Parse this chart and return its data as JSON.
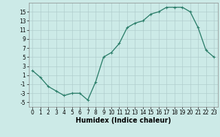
{
  "x": [
    0,
    1,
    2,
    3,
    4,
    5,
    6,
    7,
    8,
    9,
    10,
    11,
    12,
    13,
    14,
    15,
    16,
    17,
    18,
    19,
    20,
    21,
    22,
    23
  ],
  "y": [
    2,
    0.5,
    -1.5,
    -2.5,
    -3.5,
    -3,
    -3,
    -4.5,
    -0.5,
    5,
    6,
    8,
    11.5,
    12.5,
    13,
    14.5,
    15,
    16,
    16,
    16,
    15,
    11.5,
    6.5,
    5
  ],
  "line_color": "#2d7f6b",
  "marker": "+",
  "marker_size": 3,
  "linewidth": 1.0,
  "bg_color": "#cceae7",
  "grid_color": "#b0cccc",
  "xlabel": "Humidex (Indice chaleur)",
  "xlim": [
    -0.5,
    23.5
  ],
  "ylim": [
    -6,
    17
  ],
  "yticks": [
    -5,
    -3,
    -1,
    1,
    3,
    5,
    7,
    9,
    11,
    13,
    15
  ],
  "xticks": [
    0,
    1,
    2,
    3,
    4,
    5,
    6,
    7,
    8,
    9,
    10,
    11,
    12,
    13,
    14,
    15,
    16,
    17,
    18,
    19,
    20,
    21,
    22,
    23
  ],
  "tick_fontsize": 5.5,
  "xlabel_fontsize": 7,
  "xlabel_fontweight": "bold"
}
